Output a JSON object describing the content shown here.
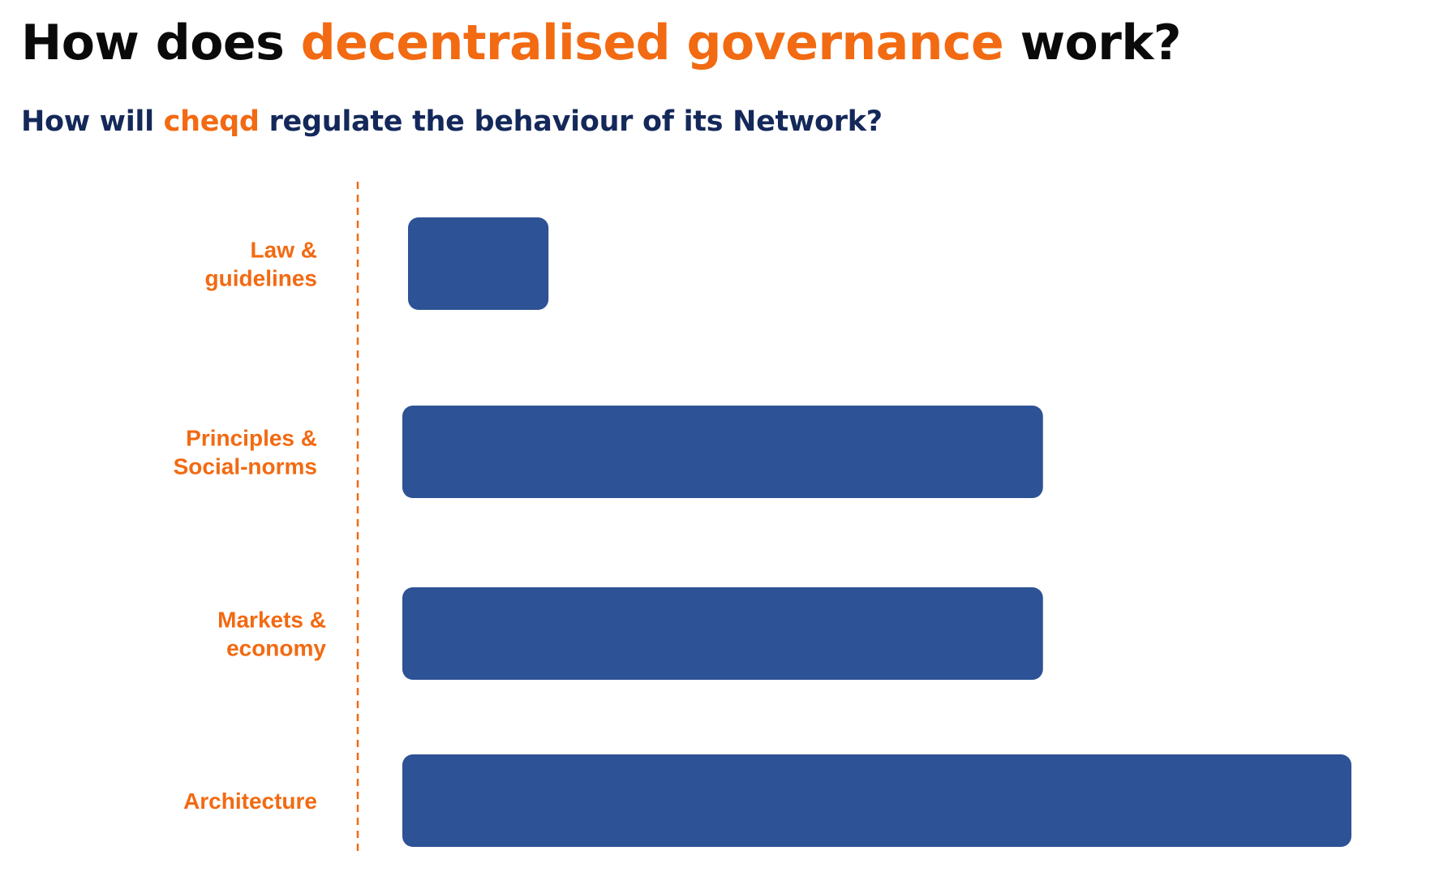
{
  "heading": {
    "prefix": "How does ",
    "highlight": "decentralised governance",
    "suffix": " work?"
  },
  "subheading": {
    "prefix": "How will ",
    "highlight": "cheqd",
    "suffix": " regulate the behaviour of its Network?"
  },
  "colors": {
    "accent": "#f26a12",
    "bar": "#2d5295",
    "title": "#0a0a0a",
    "subtitle": "#14285a"
  },
  "chart_data": {
    "type": "bar",
    "orientation": "horizontal",
    "categories": [
      [
        "Law &",
        "guidelines"
      ],
      [
        "Principles &",
        "Social-norms"
      ],
      [
        "Markets &",
        "economy"
      ],
      [
        "Architecture"
      ]
    ],
    "values": [
      15.4,
      67.5,
      67.5,
      100
    ],
    "xlim": [
      0,
      100
    ],
    "axis_line": "dashed",
    "grid": false,
    "legend": "none"
  }
}
